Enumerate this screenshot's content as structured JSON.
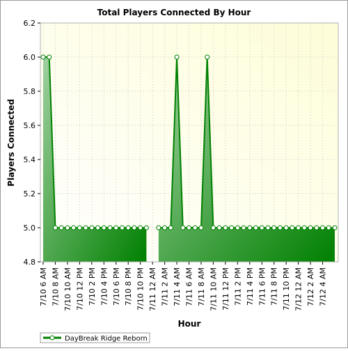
{
  "chart_data": {
    "type": "area",
    "title": "Total Players Connected By Hour",
    "xlabel": "Hour",
    "ylabel": "Players Connected",
    "ylim": [
      4.8,
      6.2
    ],
    "yticks": [
      "4.8",
      "5.0",
      "5.2",
      "5.4",
      "5.6",
      "5.8",
      "6.0",
      "6.2"
    ],
    "grid": true,
    "legend_position": "bottom-left",
    "x_tick_labels": [
      "7/10 6 AM",
      "7/10 8 AM",
      "7/10 10 AM",
      "7/10 12 PM",
      "7/10 2 PM",
      "7/10 4 PM",
      "7/10 6 PM",
      "7/10 8 PM",
      "7/10 10 PM",
      "7/11 12 AM",
      "7/11 2 AM",
      "7/11 4 AM",
      "7/11 6 AM",
      "7/11 8 AM",
      "7/11 10 AM",
      "7/11 12 PM",
      "7/11 2 PM",
      "7/11 4 PM",
      "7/11 6 PM",
      "7/11 8 PM",
      "7/11 10 PM",
      "7/12 12 AM",
      "7/12 2 AM",
      "7/12 4 AM"
    ],
    "series": [
      {
        "name": "DayBreak Ridge Reborn",
        "color": "#008000",
        "values": [
          6,
          6,
          5,
          5,
          5,
          5,
          5,
          5,
          5,
          5,
          5,
          5,
          5,
          5,
          5,
          5,
          5,
          5,
          null,
          5,
          5,
          5,
          6,
          5,
          5,
          5,
          5,
          6,
          5,
          5,
          5,
          5,
          5,
          5,
          5,
          5,
          5,
          5,
          5,
          5,
          5,
          5,
          5,
          5,
          5,
          5,
          5,
          5,
          5
        ]
      }
    ]
  },
  "colors": {
    "plot_bg_light": "#ffffff",
    "plot_bg_warm": "#fdfdd8",
    "area_light": "#a0d0a0",
    "area_dark": "#008000",
    "line": "#008000"
  }
}
